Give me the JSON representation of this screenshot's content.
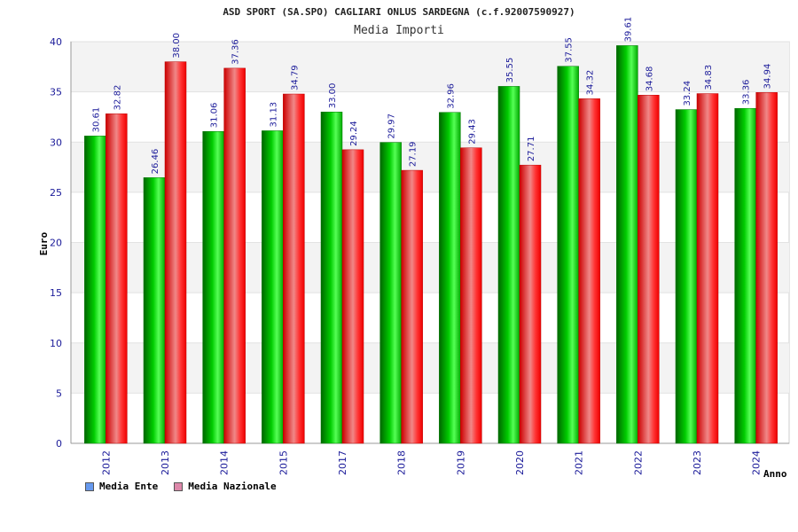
{
  "chart_data": {
    "type": "bar",
    "title": "ASD SPORT (SA.SPO) CAGLIARI ONLUS SARDEGNA (c.f.92007590927)",
    "subtitle": "Media Importi",
    "xlabel": "Anno",
    "ylabel": "Euro",
    "ylim": [
      0,
      40
    ],
    "yticks": [
      "0",
      "5",
      "10",
      "15",
      "20",
      "25",
      "30",
      "35",
      "40"
    ],
    "grid": true,
    "legend_position": "bottom-left",
    "categories": [
      "2012",
      "2013",
      "2014",
      "2015",
      "2017",
      "2018",
      "2019",
      "2020",
      "2021",
      "2022",
      "2023",
      "2024"
    ],
    "series": [
      {
        "name": "Media Ente",
        "color": "#00aa00",
        "legend_color": "#6699ee",
        "values": [
          30.61,
          26.46,
          31.06,
          31.13,
          33.0,
          29.97,
          32.96,
          35.55,
          37.55,
          39.61,
          33.24,
          33.36
        ],
        "labels": [
          "30.61",
          "26.46",
          "31.06",
          "31.13",
          "33.00",
          "29.97",
          "32.96",
          "35.55",
          "37.55",
          "39.61",
          "33.24",
          "33.36"
        ]
      },
      {
        "name": "Media Nazionale",
        "color": "#ee1122",
        "legend_color": "#dd88aa",
        "values": [
          32.82,
          38.0,
          37.36,
          34.79,
          29.24,
          27.19,
          29.43,
          27.71,
          34.32,
          34.68,
          34.83,
          34.94
        ],
        "labels": [
          "32.82",
          "38.00",
          "37.36",
          "34.79",
          "29.24",
          "27.19",
          "29.43",
          "27.71",
          "34.32",
          "34.68",
          "34.83",
          "34.94"
        ]
      }
    ]
  }
}
